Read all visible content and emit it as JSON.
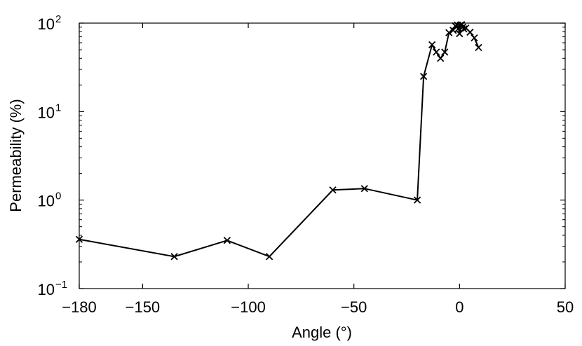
{
  "chart_data": {
    "type": "line",
    "xlabel": "Angle (°)",
    "ylabel": "Permeability (%)",
    "xlim": [
      -180,
      50
    ],
    "ylim": [
      0.1,
      100
    ],
    "yscale": "log",
    "grid": false,
    "x_ticks": [
      {
        "value": -180,
        "label": "−180"
      },
      {
        "value": -150,
        "label": "−150"
      },
      {
        "value": -100,
        "label": "−100"
      },
      {
        "value": -50,
        "label": "−50"
      },
      {
        "value": 0,
        "label": "0"
      },
      {
        "value": 50,
        "label": "50"
      }
    ],
    "y_ticks": [
      {
        "value": 0.1,
        "base": "10",
        "exp": "−1"
      },
      {
        "value": 1,
        "base": "10",
        "exp": "0"
      },
      {
        "value": 10,
        "base": "10",
        "exp": "1"
      },
      {
        "value": 100,
        "base": "10",
        "exp": "2"
      }
    ],
    "series": [
      {
        "marker": "x",
        "color": "#000000",
        "points": [
          {
            "x": -180,
            "y": 0.36
          },
          {
            "x": -135,
            "y": 0.23
          },
          {
            "x": -110,
            "y": 0.35
          },
          {
            "x": -90,
            "y": 0.23
          },
          {
            "x": -60,
            "y": 1.3
          },
          {
            "x": -45,
            "y": 1.35
          },
          {
            "x": -20,
            "y": 1.0
          },
          {
            "x": -17,
            "y": 25
          },
          {
            "x": -13,
            "y": 57
          },
          {
            "x": -11,
            "y": 47
          },
          {
            "x": -9,
            "y": 40
          },
          {
            "x": -7,
            "y": 47
          },
          {
            "x": -5,
            "y": 78
          },
          {
            "x": -3,
            "y": 83
          },
          {
            "x": -2,
            "y": 93
          },
          {
            "x": -1.5,
            "y": 91
          },
          {
            "x": -1,
            "y": 95
          },
          {
            "x": -0.5,
            "y": 87
          },
          {
            "x": 0,
            "y": 76
          },
          {
            "x": 0.5,
            "y": 95
          },
          {
            "x": 1,
            "y": 96
          },
          {
            "x": 1.5,
            "y": 90
          },
          {
            "x": 2,
            "y": 86
          },
          {
            "x": 3,
            "y": 88
          },
          {
            "x": 5,
            "y": 79
          },
          {
            "x": 7,
            "y": 68
          },
          {
            "x": 9,
            "y": 53
          }
        ]
      }
    ]
  }
}
